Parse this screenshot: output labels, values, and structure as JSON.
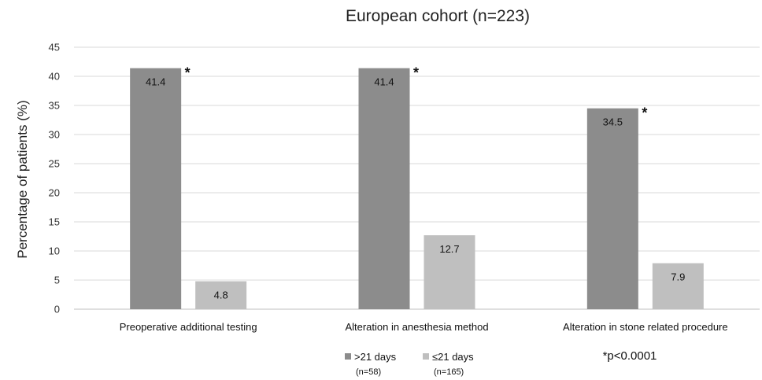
{
  "chart_data": {
    "type": "bar",
    "title": "European cohort (n=223)",
    "ylabel": "Percentage of patients (%)",
    "xlabel": "",
    "ylim": [
      0,
      45
    ],
    "yticks": [
      0,
      5,
      10,
      15,
      20,
      25,
      30,
      35,
      40,
      45
    ],
    "grid": true,
    "legend_position": "bottom",
    "categories": [
      "Preoperative additional testing",
      "Alteration in anesthesia method",
      "Alteration in stone related procedure"
    ],
    "series": [
      {
        "name": ">21 days",
        "note": "(n=58)",
        "color": "#8c8c8c",
        "values": [
          41.4,
          41.4,
          34.5
        ],
        "data_labels": [
          "41.4",
          "41.4",
          "34.5"
        ],
        "marker": "*"
      },
      {
        "name": "≤21 days",
        "note": "(n=165)",
        "color": "#bfbfbf",
        "values": [
          4.8,
          12.7,
          7.9
        ],
        "data_labels": [
          "4.8",
          "12.7",
          "7.9"
        ]
      }
    ],
    "significance_note": "*p<0.0001"
  }
}
